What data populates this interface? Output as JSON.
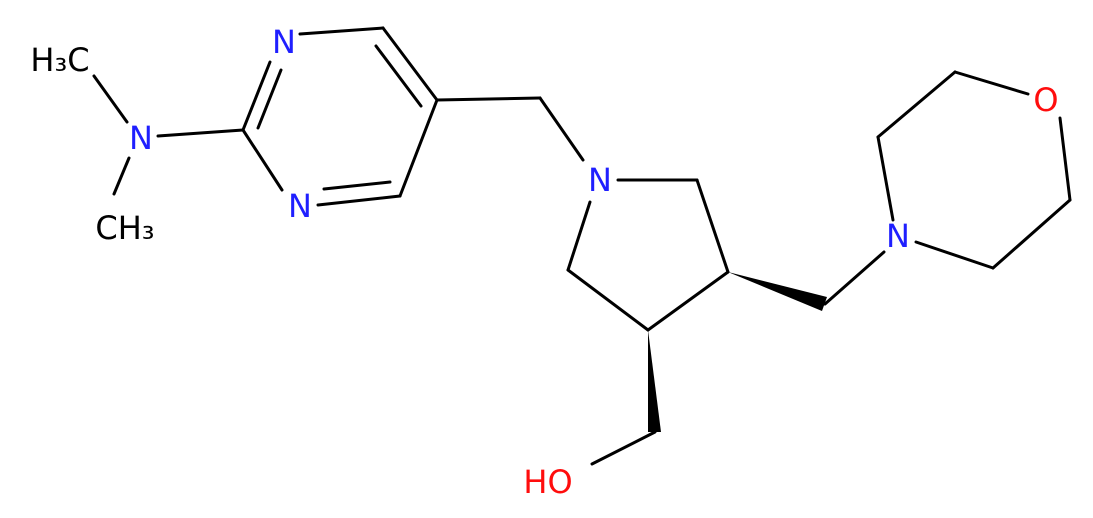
{
  "labels": [
    "H₃C",
    "N",
    "CH₃",
    "N",
    "N",
    "N",
    "N",
    "O",
    "HO"
  ]
}
